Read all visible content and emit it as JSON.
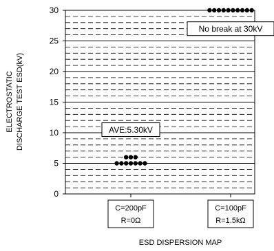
{
  "chart_data": {
    "type": "scatter",
    "title": "ESD DISPERSION MAP",
    "ylabel": [
      "ELECTROSTATIC",
      "DISCHARGE TEST ESD(kV)"
    ],
    "ylim": [
      0,
      30
    ],
    "y_ticks": [
      0,
      5,
      10,
      15,
      20,
      25,
      30
    ],
    "categories": [
      {
        "line1": "C=200pF",
        "line2": "R=0Ω"
      },
      {
        "line1": "C=100pF",
        "line2": "R=1.5kΩ"
      }
    ],
    "series": [
      {
        "category_index": 0,
        "points": [
          6,
          6,
          6,
          5,
          5,
          5,
          5,
          5,
          5,
          5
        ]
      },
      {
        "category_index": 1,
        "points": [
          30,
          30,
          30,
          30,
          30,
          30,
          30,
          30,
          30,
          30
        ]
      }
    ],
    "annotations": [
      {
        "text": "AVE:5.30kV",
        "category_index": 0,
        "y": 10.5
      },
      {
        "text": "No break at 30kV",
        "category_index": 1,
        "y": 27
      }
    ],
    "grid": "dashed minor lines every 1kV, solid major lines every 5kV",
    "marker_color": "#000000"
  }
}
